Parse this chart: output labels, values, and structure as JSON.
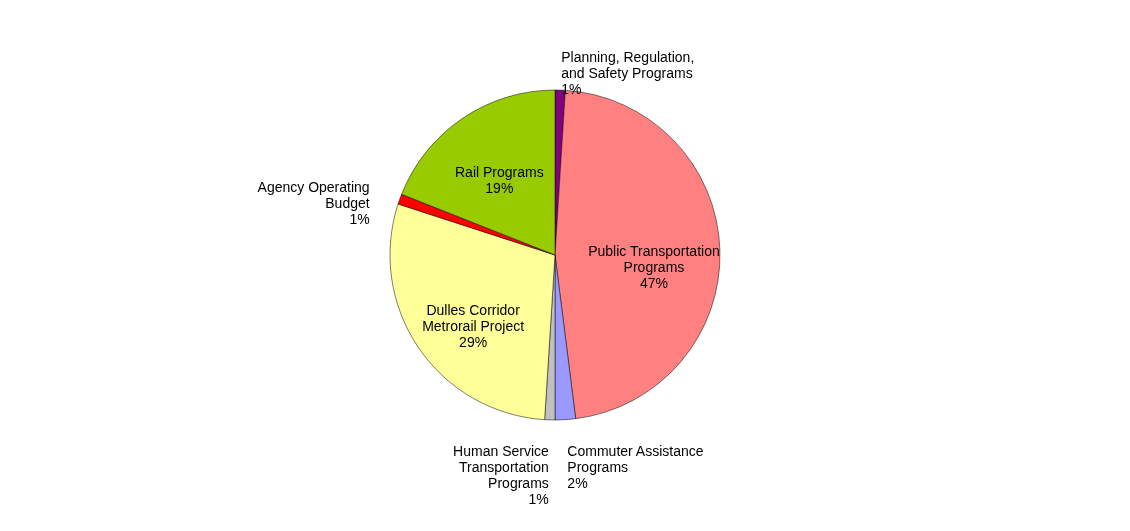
{
  "chart_data": {
    "type": "pie",
    "categories": [
      "Planning, Regulation, and Safety Programs",
      "Public Transportation Programs",
      "Commuter Assistance Programs",
      "Human Service Transportation Programs",
      "Dulles Corridor Metrorail Project",
      "Agency Operating Budget",
      "Rail Programs"
    ],
    "values": [
      1,
      47,
      2,
      1,
      29,
      1,
      19
    ],
    "value_labels": [
      "1%",
      "47%",
      "2%",
      "1%",
      "29%",
      "1%",
      "19%"
    ],
    "colors": [
      "#800080",
      "#ff8080",
      "#9999ff",
      "#c0c0c0",
      "#ffff99",
      "#ff0000",
      "#99cc00"
    ],
    "legend": false
  }
}
